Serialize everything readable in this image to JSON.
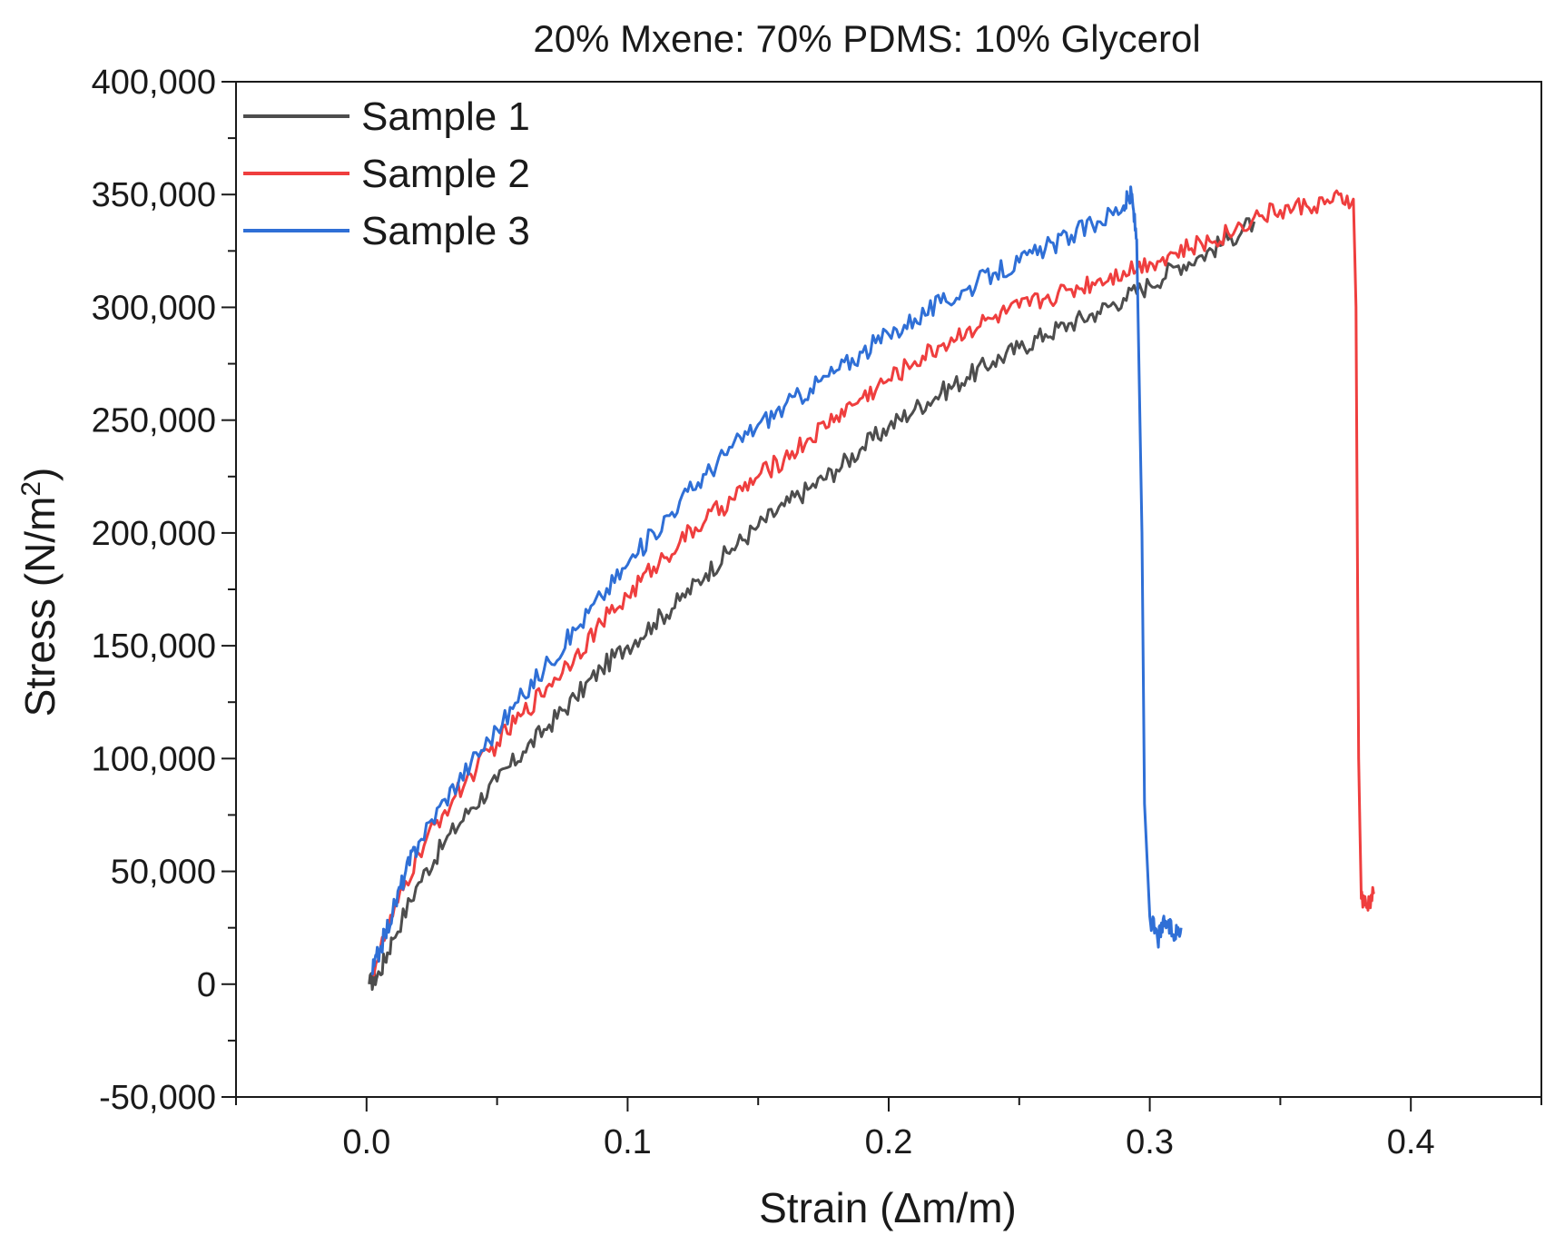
{
  "chart_data": {
    "type": "line",
    "title": "20% Mxene: 70% PDMS: 10% Glycerol",
    "xlabel": "Strain (Δm/m)",
    "ylabel_main": "Stress (N/m",
    "ylabel_sup": "2",
    "ylabel_close": ")",
    "xlim": [
      -0.05,
      0.45
    ],
    "ylim": [
      -50000,
      400000
    ],
    "xticks": [
      0.0,
      0.1,
      0.2,
      0.3,
      0.4
    ],
    "xtick_labels": [
      "0.0",
      "0.1",
      "0.2",
      "0.3",
      "0.4"
    ],
    "yticks": [
      -50000,
      0,
      50000,
      100000,
      150000,
      200000,
      250000,
      300000,
      350000,
      400000
    ],
    "ytick_labels": [
      "-50,000",
      "0",
      "50,000",
      "100,000",
      "150,000",
      "200,000",
      "250,000",
      "300,000",
      "350,000",
      "400,000"
    ],
    "grid": false,
    "legend_position": "top-left",
    "series": [
      {
        "name": "Sample 1",
        "color": "#4d4d4d",
        "x": [
          0.001,
          0.005,
          0.01,
          0.02,
          0.03,
          0.04,
          0.05,
          0.06,
          0.07,
          0.08,
          0.09,
          0.1,
          0.11,
          0.12,
          0.13,
          0.14,
          0.15,
          0.16,
          0.17,
          0.18,
          0.19,
          0.2,
          0.21,
          0.22,
          0.23,
          0.24,
          0.25,
          0.26,
          0.27,
          0.28,
          0.29,
          0.3,
          0.31,
          0.32,
          0.33,
          0.34
        ],
        "y": [
          0,
          5000,
          20000,
          45000,
          63000,
          78000,
          90000,
          103000,
          115000,
          127000,
          140000,
          150000,
          160000,
          170000,
          182000,
          193000,
          203000,
          212000,
          220000,
          228000,
          238000,
          247000,
          255000,
          262000,
          269000,
          276000,
          282000,
          288000,
          293000,
          298000,
          304000,
          310000,
          318000,
          323000,
          330000,
          338000
        ]
      },
      {
        "name": "Sample 2",
        "color": "#ef3e3e",
        "x": [
          0.002,
          0.01,
          0.02,
          0.03,
          0.04,
          0.05,
          0.06,
          0.07,
          0.08,
          0.09,
          0.1,
          0.11,
          0.12,
          0.13,
          0.14,
          0.15,
          0.16,
          0.17,
          0.18,
          0.19,
          0.2,
          0.21,
          0.22,
          0.23,
          0.24,
          0.25,
          0.26,
          0.27,
          0.28,
          0.29,
          0.3,
          0.31,
          0.32,
          0.33,
          0.34,
          0.35,
          0.36,
          0.37,
          0.378,
          0.379,
          0.38,
          0.381,
          0.383,
          0.386
        ],
        "y": [
          5000,
          30000,
          58000,
          77000,
          93000,
          107000,
          120000,
          133000,
          146000,
          160000,
          172000,
          185000,
          196000,
          206000,
          215000,
          225000,
          233000,
          242000,
          252000,
          260000,
          268000,
          276000,
          283000,
          290000,
          295000,
          300000,
          304000,
          308000,
          312000,
          316000,
          320000,
          324000,
          328000,
          333000,
          340000,
          343000,
          345000,
          347000,
          348000,
          300000,
          100000,
          38000,
          34000,
          40000
        ]
      },
      {
        "name": "Sample 3",
        "color": "#2f6fd6",
        "x": [
          0.002,
          0.005,
          0.01,
          0.015,
          0.02,
          0.03,
          0.04,
          0.05,
          0.06,
          0.07,
          0.08,
          0.09,
          0.1,
          0.11,
          0.12,
          0.13,
          0.14,
          0.15,
          0.16,
          0.17,
          0.18,
          0.19,
          0.2,
          0.21,
          0.22,
          0.23,
          0.24,
          0.25,
          0.26,
          0.27,
          0.28,
          0.29,
          0.293,
          0.295,
          0.297,
          0.298,
          0.3,
          0.303,
          0.306,
          0.309,
          0.312
        ],
        "y": [
          5000,
          15000,
          32000,
          50000,
          63000,
          82000,
          98000,
          113000,
          128000,
          143000,
          157000,
          172000,
          186000,
          200000,
          214000,
          226000,
          238000,
          248000,
          256000,
          264000,
          272000,
          280000,
          288000,
          295000,
          302000,
          308000,
          315000,
          320000,
          326000,
          332000,
          338000,
          345000,
          350000,
          330000,
          200000,
          80000,
          30000,
          20000,
          28000,
          22000,
          25000
        ]
      }
    ]
  }
}
